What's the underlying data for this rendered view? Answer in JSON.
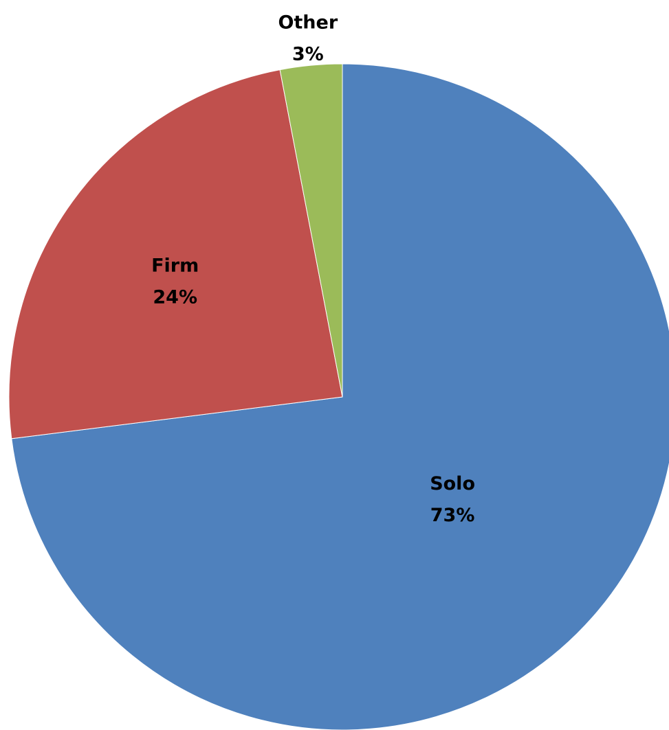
{
  "chart_data": {
    "type": "pie",
    "title": "",
    "start_angle_deg": 0,
    "direction": "clockwise",
    "slices": [
      {
        "name": "Solo",
        "value": 73,
        "label": "Solo",
        "percent_label": "73%",
        "color": "#4F81BD"
      },
      {
        "name": "Firm",
        "value": 24,
        "label": "Firm",
        "percent_label": "24%",
        "color": "#C0504D"
      },
      {
        "name": "Other",
        "value": 3,
        "label": "Other",
        "percent_label": "3%",
        "color": "#9BBB59"
      }
    ]
  }
}
